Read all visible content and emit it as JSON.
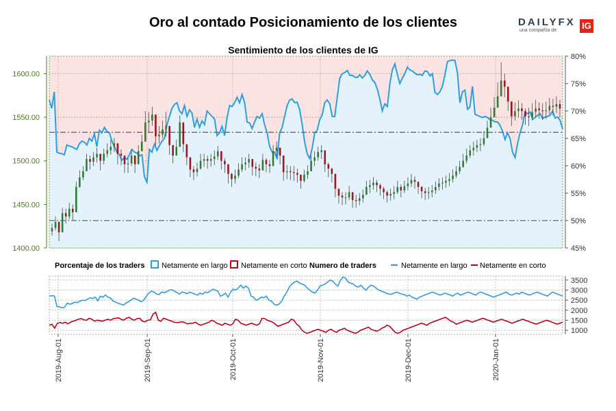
{
  "header": {
    "title": "Oro al contado Posicionamiento de los clientes",
    "subtitle": "Sentimiento de los clientes de IG",
    "logo_main": "DAILYFX",
    "logo_sub": "una compañía de",
    "logo_badge": "IG"
  },
  "colors": {
    "long": "#2b9de2",
    "short": "#c0001a",
    "up_candle": "#2e7d32",
    "down_candle": "#a3131c",
    "long_fill": "#e4f3fb",
    "short_fill": "#fbe3e3",
    "price_axis": "#4b7d16"
  },
  "legend": {
    "pct_title": "Porcentaje de los traders",
    "pct_long": "Netamente en largo",
    "pct_short": "Netamente en corto",
    "num_title": "Numero de traders",
    "num_long": "Netamente en largo",
    "num_short": "Netamente en corto"
  },
  "chart_data": [
    {
      "type": "candlestick",
      "name": "Precio del oro",
      "y_axis_left_label_ticks": [
        "1400.00",
        "1450.00",
        "1500.00",
        "1550.00",
        "1600.00"
      ],
      "ylim": [
        1400,
        1620
      ],
      "x_ticks": [
        "2019-Aug-01",
        "2019-Sep-01",
        "2019-Oct-01",
        "2019-Nov-01",
        "2019-Dec-01",
        "2020-Jan-01"
      ],
      "close": [
        1423,
        1430,
        1418,
        1440,
        1436,
        1445,
        1441,
        1470,
        1481,
        1488,
        1502,
        1499,
        1504,
        1508,
        1500,
        1508,
        1512,
        1516,
        1520,
        1508,
        1506,
        1496,
        1497,
        1506,
        1496,
        1511,
        1522,
        1544,
        1546,
        1553,
        1528,
        1530,
        1536,
        1540,
        1518,
        1506,
        1516,
        1544,
        1519,
        1504,
        1490,
        1487,
        1491,
        1500,
        1502,
        1500,
        1502,
        1505,
        1511,
        1500,
        1496,
        1485,
        1479,
        1483,
        1490,
        1496,
        1498,
        1502,
        1493,
        1491,
        1489,
        1501,
        1496,
        1494,
        1511,
        1515,
        1506,
        1487,
        1488,
        1487,
        1486,
        1484,
        1477,
        1484,
        1488,
        1500,
        1504,
        1510,
        1512,
        1496,
        1491,
        1485,
        1468,
        1460,
        1458,
        1458,
        1464,
        1455,
        1454,
        1457,
        1461,
        1470,
        1472,
        1475,
        1472,
        1468,
        1464,
        1460,
        1462,
        1464,
        1470,
        1466,
        1471,
        1474,
        1478,
        1476,
        1470,
        1465,
        1463,
        1464,
        1466,
        1470,
        1474,
        1475,
        1477,
        1479,
        1483,
        1488,
        1493,
        1500,
        1506,
        1512,
        1515,
        1518,
        1519,
        1526,
        1538,
        1550,
        1561,
        1574,
        1592,
        1585,
        1568,
        1551,
        1557,
        1560,
        1557,
        1551,
        1550,
        1556,
        1560,
        1558,
        1557,
        1558,
        1563,
        1562,
        1565,
        1560
      ],
      "high": [
        1428,
        1436,
        1426,
        1446,
        1445,
        1452,
        1450,
        1476,
        1489,
        1494,
        1508,
        1506,
        1510,
        1515,
        1508,
        1514,
        1520,
        1524,
        1526,
        1517,
        1513,
        1503,
        1503,
        1513,
        1504,
        1518,
        1530,
        1557,
        1556,
        1562,
        1540,
        1540,
        1546,
        1556,
        1529,
        1516,
        1524,
        1552,
        1527,
        1511,
        1498,
        1494,
        1498,
        1508,
        1508,
        1506,
        1508,
        1512,
        1517,
        1507,
        1503,
        1492,
        1486,
        1490,
        1497,
        1504,
        1504,
        1508,
        1499,
        1498,
        1496,
        1508,
        1503,
        1501,
        1518,
        1522,
        1514,
        1494,
        1495,
        1494,
        1494,
        1491,
        1484,
        1490,
        1495,
        1506,
        1511,
        1516,
        1518,
        1502,
        1498,
        1492,
        1475,
        1466,
        1464,
        1464,
        1471,
        1461,
        1461,
        1463,
        1467,
        1477,
        1478,
        1481,
        1478,
        1474,
        1470,
        1466,
        1468,
        1471,
        1477,
        1473,
        1477,
        1481,
        1485,
        1482,
        1476,
        1471,
        1469,
        1470,
        1472,
        1476,
        1480,
        1481,
        1483,
        1486,
        1490,
        1494,
        1500,
        1508,
        1514,
        1518,
        1522,
        1524,
        1526,
        1534,
        1546,
        1561,
        1573,
        1590,
        1613,
        1600,
        1578,
        1562,
        1567,
        1569,
        1566,
        1560,
        1561,
        1566,
        1570,
        1567,
        1566,
        1568,
        1572,
        1571,
        1574,
        1570
      ],
      "low": [
        1414,
        1420,
        1408,
        1428,
        1428,
        1433,
        1432,
        1458,
        1469,
        1478,
        1492,
        1490,
        1494,
        1498,
        1489,
        1496,
        1504,
        1507,
        1510,
        1496,
        1495,
        1486,
        1486,
        1494,
        1486,
        1501,
        1511,
        1532,
        1532,
        1540,
        1518,
        1520,
        1526,
        1528,
        1507,
        1497,
        1506,
        1530,
        1510,
        1495,
        1481,
        1478,
        1482,
        1490,
        1493,
        1491,
        1493,
        1495,
        1501,
        1490,
        1486,
        1474,
        1470,
        1474,
        1480,
        1487,
        1489,
        1492,
        1483,
        1482,
        1480,
        1492,
        1487,
        1486,
        1501,
        1505,
        1496,
        1477,
        1479,
        1478,
        1477,
        1475,
        1468,
        1475,
        1479,
        1490,
        1494,
        1500,
        1502,
        1487,
        1481,
        1475,
        1458,
        1451,
        1449,
        1450,
        1455,
        1446,
        1446,
        1449,
        1452,
        1461,
        1463,
        1467,
        1464,
        1460,
        1456,
        1452,
        1454,
        1456,
        1462,
        1458,
        1463,
        1466,
        1470,
        1468,
        1462,
        1457,
        1455,
        1456,
        1458,
        1462,
        1466,
        1467,
        1469,
        1471,
        1475,
        1480,
        1485,
        1492,
        1497,
        1503,
        1506,
        1510,
        1511,
        1517,
        1528,
        1540,
        1551,
        1562,
        1579,
        1573,
        1557,
        1540,
        1546,
        1550,
        1547,
        1541,
        1540,
        1546,
        1550,
        1548,
        1547,
        1548,
        1553,
        1552,
        1555,
        1550
      ]
    },
    {
      "type": "line",
      "name": "Porcentaje de los traders",
      "y_axis_right_label_ticks": [
        "45%",
        "50%",
        "55%",
        "60%",
        "65%",
        "70%",
        "75%",
        "80%"
      ],
      "ylim": [
        45,
        80
      ],
      "series": [
        {
          "name": "Netamente en largo",
          "values": [
            72,
            70.5,
            73.5,
            62.5,
            62.3,
            62.2,
            62,
            63.8,
            63.6,
            63.5,
            63.2,
            63,
            64,
            64.5,
            64.3,
            63.8,
            65,
            64.5,
            65.8,
            63.5,
            66.5,
            66,
            67,
            66.3,
            66,
            64.5,
            63.5,
            62.5,
            62,
            61,
            61.5,
            61.2,
            62,
            63,
            62.5,
            62.3,
            61.8,
            62,
            58,
            57,
            63,
            62.5,
            64,
            62.8,
            63.7,
            64.5,
            65,
            67.5,
            69,
            70.5,
            71.2,
            71.5,
            70,
            69.5,
            71,
            69,
            70.2,
            69.6,
            67,
            68.5,
            67,
            68.2,
            67.5,
            70,
            69.5,
            69,
            68.5,
            65.5,
            66,
            67.2,
            65.5,
            68.8,
            71,
            70.8,
            71.5,
            72.5,
            71.5,
            73,
            71.5,
            68,
            67.8,
            66.8,
            68,
            69,
            68.7,
            69.5,
            67.5,
            66,
            63.5,
            62.5,
            62.5,
            61.2,
            66,
            67,
            69,
            71,
            72,
            72.2,
            71.5,
            71.6,
            70.2,
            67.5,
            64.3,
            62.2,
            61.3,
            63.2,
            66,
            66.5,
            68.4,
            69.3,
            71.5,
            72,
            71.3,
            69,
            69,
            72.5,
            76,
            76.8,
            77,
            77.4,
            76.5,
            76.5,
            76.2,
            76.1,
            76.6,
            76,
            76.5,
            77.3,
            76.7,
            75.7,
            75.2,
            74,
            72.2,
            70,
            71.3,
            70.8,
            75,
            77.5,
            78.6,
            76.7,
            75,
            76,
            76.8,
            78,
            77.5,
            77.3,
            76.9,
            76.6,
            76.7,
            76.5,
            77.3,
            77.2,
            76.4,
            76.8,
            73.4,
            73,
            73.5,
            74.5,
            76.5,
            79,
            79.2,
            79.3,
            79.2,
            77,
            71.5,
            73.5,
            73.8,
            70.3,
            70.7,
            74.5,
            69.4,
            69.2,
            69,
            68.8,
            69,
            68.8,
            68.4,
            68.3,
            68,
            68,
            67.4,
            66.3,
            64.8,
            66,
            65,
            62.5,
            61.5,
            64,
            66,
            67.5,
            69.8,
            69.5,
            69.8,
            68.5,
            68.8,
            69.2,
            69.5,
            68.6,
            68.9,
            69,
            69.2,
            70,
            68.7,
            68.9,
            68.3,
            66.7
          ]
        },
        {
          "name": "Netamente en corto",
          "values": "complemento del largo (100 - largo)"
        }
      ]
    },
    {
      "type": "line",
      "name": "Numero de traders",
      "y_axis_right_label_ticks": [
        "1000",
        "1500",
        "2000",
        "2500",
        "3000",
        "3500"
      ],
      "ylim": [
        800,
        3700
      ],
      "series": [
        {
          "name": "Netamente en largo",
          "values": [
            2700,
            2720,
            2710,
            2180,
            2170,
            2120,
            2150,
            2350,
            2300,
            2330,
            2400,
            2380,
            2450,
            2500,
            2480,
            2550,
            2620,
            2580,
            2650,
            2460,
            2700,
            2650,
            2760,
            2650,
            2600,
            2450,
            2400,
            2350,
            2300,
            2250,
            2350,
            2420,
            2500,
            2600,
            2550,
            2500,
            2420,
            2500,
            2700,
            2850,
            2950,
            2900,
            2800,
            2780,
            2900,
            2870,
            2920,
            3000,
            3020,
            2950,
            2880,
            2800,
            2900,
            2870,
            2820,
            2900,
            2850,
            2800,
            2750,
            2850,
            2800,
            2900,
            2870,
            2950,
            3050,
            3000,
            2950,
            2700,
            2750,
            2850,
            2650,
            2900,
            3050,
            3000,
            3100,
            3250,
            3100,
            3200,
            3100,
            2700,
            2650,
            2500,
            2550,
            2650,
            2620,
            2700,
            2500,
            2450,
            2300,
            2250,
            2300,
            2450,
            2700,
            2900,
            3150,
            3300,
            3400,
            3450,
            3350,
            3300,
            3250,
            3100,
            3000,
            2900,
            2850,
            3000,
            3200,
            3250,
            3300,
            3400,
            3500,
            3450,
            3300,
            3200,
            3500,
            3650,
            3600,
            3400,
            3350,
            3300,
            3200,
            3150,
            3250,
            3100,
            3000,
            3150,
            3250,
            3200,
            3100,
            3000,
            2950,
            2900,
            2850,
            2800,
            2800,
            2850,
            2900,
            2850,
            2800,
            2780,
            2700,
            2750,
            2650,
            2600,
            2550,
            2650,
            2700,
            2750,
            2800,
            2850,
            2900,
            2850,
            2800,
            2750,
            2800,
            2850,
            2800,
            2750,
            2700,
            2800,
            2850,
            2750,
            2800,
            2850,
            2900,
            2850,
            2800,
            2750,
            2850,
            2900,
            2850,
            2800,
            2750,
            2700,
            2650,
            2700,
            2750,
            2800,
            2850,
            2900,
            2800,
            2750,
            2800,
            2850,
            2800,
            2900,
            2850,
            2800,
            2750,
            2800,
            2850,
            2900,
            2850,
            2800,
            2750,
            2700,
            2800,
            2900,
            2850,
            2800,
            2750,
            2700
          ]
        },
        {
          "name": "Netamente en corto",
          "values": [
            1250,
            1300,
            1100,
            1350,
            1380,
            1350,
            1400,
            1320,
            1400,
            1450,
            1500,
            1550,
            1580,
            1520,
            1500,
            1600,
            1550,
            1450,
            1500,
            1480,
            1450,
            1500,
            1550,
            1500,
            1580,
            1600,
            1620,
            1550,
            1500,
            1600,
            1650,
            1550,
            1500,
            1580,
            1600,
            1450,
            1420,
            1500,
            1520,
            1800,
            1900,
            1500,
            1450,
            1600,
            1550,
            1500,
            1450,
            1400,
            1380,
            1400,
            1420,
            1380,
            1320,
            1350,
            1350,
            1400,
            1300,
            1250,
            1300,
            1350,
            1400,
            1500,
            1450,
            1350,
            1300,
            1250,
            1350,
            1300,
            1250,
            1320,
            1550,
            1500,
            1350,
            1300,
            1250,
            1300,
            1350,
            1300,
            1250,
            1320,
            1600,
            1580,
            1500,
            1450,
            1400,
            1300,
            1200,
            1250,
            1300,
            1350,
            1400,
            1550,
            1500,
            1300,
            1200,
            1000,
            900,
            850,
            900,
            950,
            1000,
            1050,
            1000,
            950,
            900,
            1000,
            1050,
            950,
            900,
            1000,
            1050,
            1100,
            1000,
            950,
            900,
            850,
            900,
            1000,
            1050,
            1100,
            1150,
            1050,
            1000,
            950,
            1000,
            1100,
            1150,
            1250,
            1200,
            1050,
            900,
            850,
            900,
            1000,
            1050,
            1100,
            1150,
            1200,
            1250,
            1300,
            1350,
            1300,
            1250,
            1350,
            1400,
            1450,
            1500,
            1550,
            1600,
            1650,
            1550,
            1450,
            1400,
            1300,
            1350,
            1400,
            1450,
            1500,
            1450,
            1400,
            1450,
            1500,
            1550,
            1600,
            1550,
            1500,
            1450,
            1400,
            1450,
            1500,
            1550,
            1500,
            1450,
            1400,
            1350,
            1400,
            1450,
            1500,
            1550,
            1500,
            1450,
            1400,
            1350,
            1300,
            1350,
            1400,
            1450,
            1500,
            1450,
            1400,
            1350,
            1300,
            1350,
            1400
          ]
        }
      ]
    }
  ]
}
